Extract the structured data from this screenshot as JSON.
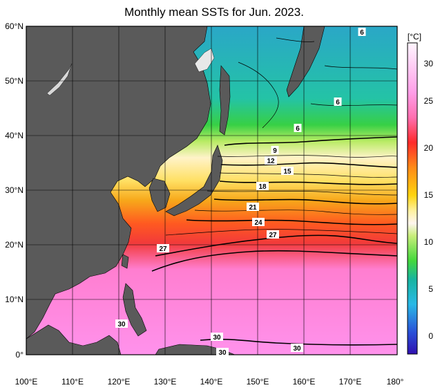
{
  "title": "Monthly mean SSTs for Jun. 2023.",
  "lat_ticks": [
    "60°N",
    "50°N",
    "40°N",
    "30°N",
    "20°N",
    "10°N",
    "0°"
  ],
  "lon_ticks": [
    "100°E",
    "110°E",
    "120°E",
    "130°E",
    "140°E",
    "150°E",
    "160°E",
    "170°E",
    "180°"
  ],
  "colorbar": {
    "unit": "[°C]",
    "labels": [
      "30",
      "25",
      "20",
      "15",
      "10",
      "5",
      "0"
    ]
  },
  "contour_labels": [
    "6",
    "6",
    "6",
    "9",
    "12",
    "15",
    "18",
    "21",
    "24",
    "27",
    "27",
    "30",
    "30",
    "30",
    "30"
  ],
  "colors": {
    "land": "#5a5a5a",
    "ice": "#d8d8d8",
    "background": "#ffffff"
  }
}
